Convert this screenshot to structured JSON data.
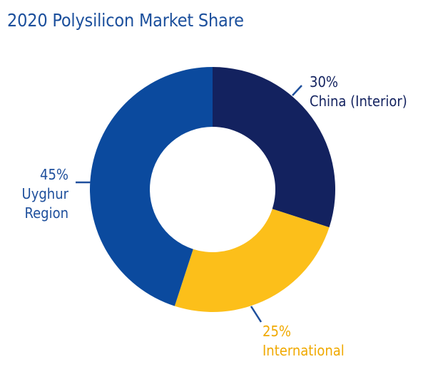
{
  "title": "2020 Polysilicon Market Share",
  "colors": {
    "title": "#1b4f9c",
    "leader": "#1e4f9c"
  },
  "chart_data": {
    "type": "pie",
    "variant": "donut",
    "title": "2020 Polysilicon Market Share",
    "unit": "%",
    "slices": [
      {
        "label": "China (Interior)",
        "value": 30,
        "value_label": "30%",
        "color": "#13225f",
        "text_color": "#13225f"
      },
      {
        "label": "International",
        "value": 25,
        "value_label": "25%",
        "color": "#fcbf1a",
        "text_color": "#f0a900"
      },
      {
        "label": "Uyghur Region",
        "label_lines": [
          "Uyghur",
          "Region"
        ],
        "value": 45,
        "value_label": "45%",
        "color": "#0b4a9e",
        "text_color": "#1e4f9c"
      }
    ],
    "legend": "none"
  }
}
